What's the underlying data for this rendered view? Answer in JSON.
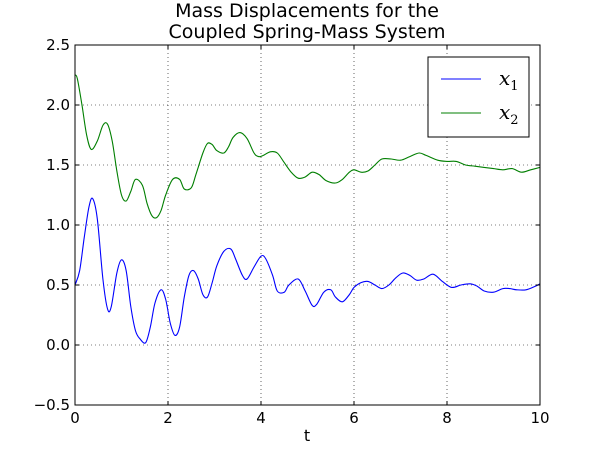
{
  "chart_data": {
    "type": "line",
    "title_line1": "Mass Displacements for the",
    "title_line2": "Coupled Spring-Mass System",
    "xlabel": "t",
    "ylabel": "",
    "xlim": [
      0,
      10
    ],
    "ylim": [
      -0.5,
      2.5
    ],
    "xticks": [
      "0",
      "2",
      "4",
      "6",
      "8",
      "10"
    ],
    "yticks": [
      "−0.5",
      "0.0",
      "0.5",
      "1.0",
      "1.5",
      "2.0",
      "2.5"
    ],
    "grid": true,
    "legend_position": "top-right",
    "series": [
      {
        "name": "x",
        "subscript": "1",
        "color": "#0000ff",
        "x": [
          0,
          0.1,
          0.2,
          0.3,
          0.38,
          0.48,
          0.6,
          0.7,
          0.78,
          0.9,
          1.0,
          1.1,
          1.2,
          1.3,
          1.4,
          1.52,
          1.62,
          1.72,
          1.85,
          1.95,
          2.05,
          2.15,
          2.25,
          2.35,
          2.45,
          2.55,
          2.65,
          2.75,
          2.85,
          2.95,
          3.05,
          3.2,
          3.35,
          3.45,
          3.6,
          3.7,
          3.85,
          4.0,
          4.1,
          4.25,
          4.35,
          4.5,
          4.6,
          4.8,
          4.95,
          5.1,
          5.2,
          5.35,
          5.5,
          5.6,
          5.75,
          5.9,
          6.0,
          6.15,
          6.3,
          6.45,
          6.6,
          6.75,
          6.9,
          7.05,
          7.2,
          7.35,
          7.5,
          7.7,
          7.9,
          8.1,
          8.3,
          8.5,
          8.65,
          8.8,
          9.0,
          9.2,
          9.35,
          9.5,
          9.7,
          9.9,
          10.0
        ],
        "y": [
          0.5,
          0.62,
          0.9,
          1.15,
          1.22,
          1.05,
          0.55,
          0.3,
          0.32,
          0.6,
          0.71,
          0.62,
          0.32,
          0.12,
          0.05,
          0.02,
          0.15,
          0.35,
          0.46,
          0.38,
          0.18,
          0.08,
          0.15,
          0.4,
          0.58,
          0.62,
          0.55,
          0.42,
          0.4,
          0.52,
          0.66,
          0.78,
          0.8,
          0.72,
          0.58,
          0.55,
          0.65,
          0.74,
          0.72,
          0.58,
          0.45,
          0.44,
          0.5,
          0.55,
          0.45,
          0.33,
          0.34,
          0.44,
          0.46,
          0.4,
          0.36,
          0.42,
          0.48,
          0.52,
          0.53,
          0.5,
          0.47,
          0.5,
          0.56,
          0.6,
          0.58,
          0.54,
          0.55,
          0.59,
          0.53,
          0.48,
          0.5,
          0.51,
          0.49,
          0.45,
          0.44,
          0.47,
          0.47,
          0.46,
          0.46,
          0.49,
          0.51
        ]
      },
      {
        "name": "x",
        "subscript": "2",
        "color": "#007f00",
        "x": [
          0,
          0.05,
          0.15,
          0.25,
          0.35,
          0.48,
          0.6,
          0.7,
          0.8,
          0.9,
          1.0,
          1.1,
          1.2,
          1.3,
          1.45,
          1.55,
          1.65,
          1.75,
          1.85,
          1.95,
          2.1,
          2.25,
          2.35,
          2.5,
          2.6,
          2.75,
          2.85,
          2.95,
          3.05,
          3.2,
          3.3,
          3.4,
          3.55,
          3.7,
          3.85,
          3.95,
          4.05,
          4.2,
          4.35,
          4.5,
          4.65,
          4.8,
          4.95,
          5.1,
          5.25,
          5.4,
          5.6,
          5.75,
          5.9,
          6.0,
          6.15,
          6.3,
          6.45,
          6.6,
          6.8,
          7.0,
          7.2,
          7.4,
          7.55,
          7.8,
          8.0,
          8.2,
          8.4,
          8.6,
          8.8,
          9.0,
          9.2,
          9.4,
          9.6,
          9.8,
          10.0
        ],
        "y": [
          2.25,
          2.22,
          2.0,
          1.75,
          1.63,
          1.7,
          1.83,
          1.84,
          1.7,
          1.45,
          1.25,
          1.2,
          1.28,
          1.38,
          1.33,
          1.18,
          1.08,
          1.06,
          1.12,
          1.25,
          1.38,
          1.38,
          1.3,
          1.31,
          1.42,
          1.6,
          1.68,
          1.67,
          1.62,
          1.6,
          1.65,
          1.73,
          1.77,
          1.72,
          1.6,
          1.57,
          1.58,
          1.61,
          1.6,
          1.52,
          1.44,
          1.39,
          1.4,
          1.44,
          1.42,
          1.37,
          1.35,
          1.38,
          1.44,
          1.46,
          1.44,
          1.45,
          1.5,
          1.55,
          1.55,
          1.54,
          1.57,
          1.6,
          1.58,
          1.54,
          1.53,
          1.53,
          1.5,
          1.49,
          1.48,
          1.47,
          1.46,
          1.47,
          1.44,
          1.46,
          1.48
        ]
      }
    ]
  }
}
